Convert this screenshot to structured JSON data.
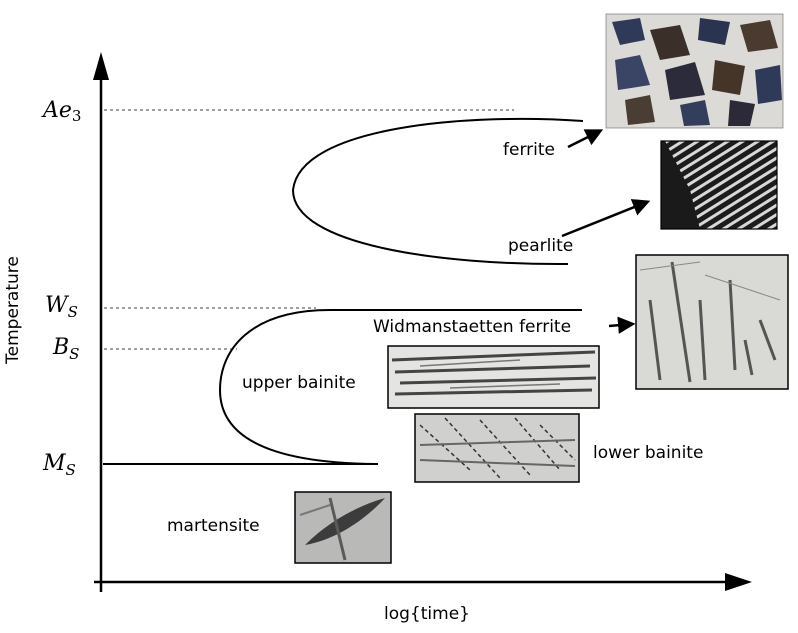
{
  "axes": {
    "y_label": "Temperature",
    "x_label": "log{time}",
    "temperature_levels": [
      {
        "main": "Ae",
        "sub": "3",
        "sub_upright": true
      },
      {
        "main": "W",
        "sub": "S",
        "sub_upright": false
      },
      {
        "main": "B",
        "sub": "S",
        "sub_upright": false
      },
      {
        "main": "M",
        "sub": "S",
        "sub_upright": false
      }
    ]
  },
  "phases": {
    "ferrite": "ferrite",
    "pearlite": "pearlite",
    "widmanstaetten": "Widmanstaetten ferrite",
    "upper_bainite": "upper bainite",
    "lower_bainite": "lower bainite",
    "martensite": "martensite"
  },
  "colors": {
    "ink": "#000000",
    "micrograph_ferrite_dark": "#2f3a58",
    "micrograph_pearlite_bg": "#1c1c1c",
    "micrograph_light": "#eeeeee"
  }
}
